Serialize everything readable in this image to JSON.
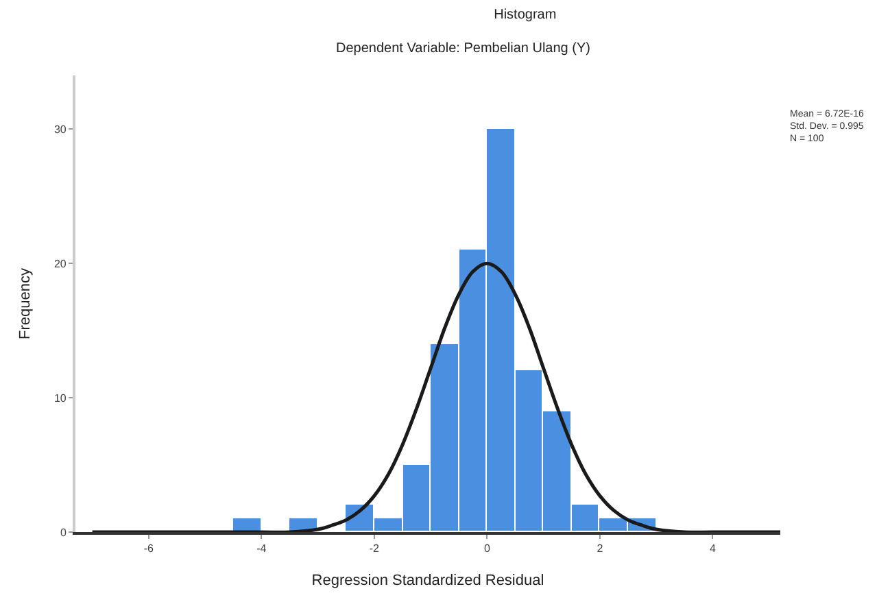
{
  "chart_data": {
    "type": "histogram",
    "title": "Histogram",
    "subtitle": "Dependent Variable: Pembelian Ulang (Y)",
    "xlabel": "Regression Standardized Residual",
    "ylabel": "Frequency",
    "bins": [
      -4.5,
      -4,
      -3.5,
      -3,
      -2.5,
      -2,
      -1.5,
      -1,
      -0.5,
      0,
      0.5,
      1,
      1.5,
      2,
      2.5,
      3
    ],
    "values": [
      1,
      0,
      1,
      0,
      2,
      1,
      5,
      14,
      21,
      30,
      12,
      9,
      2,
      1,
      1
    ],
    "color": "#4a8fe0",
    "series": [
      {
        "type": "line",
        "color": "#1a1a1a",
        "x": [
          -7,
          -6,
          -5,
          -4.5,
          -4,
          -3.5,
          -3,
          -2.75,
          -2.5,
          -2.25,
          -2,
          -1.75,
          -1.5,
          -1.25,
          -1,
          -0.75,
          -0.5,
          -0.25,
          0,
          0.25,
          0.5,
          0.75,
          1,
          1.25,
          1.5,
          1.75,
          2,
          2.25,
          2.5,
          2.75,
          3,
          3.5,
          4,
          4.5,
          5,
          5.2
        ],
        "values": [
          0,
          0,
          0,
          0,
          0,
          0,
          0.2,
          0.5,
          0.9,
          1.6,
          2.7,
          4.3,
          6.5,
          9.2,
          12.2,
          15.2,
          17.7,
          19.4,
          20,
          19.4,
          17.7,
          15.2,
          12.2,
          9.2,
          6.5,
          4.3,
          2.7,
          1.6,
          0.9,
          0.5,
          0.2,
          0,
          0,
          0,
          0,
          0
        ]
      }
    ],
    "xlim": [
      -7.3,
      5.2
    ],
    "xticks": [
      -6,
      -4,
      -2,
      0,
      2,
      4
    ],
    "ylim": [
      0,
      34
    ],
    "yticks": [
      0,
      10,
      20,
      30
    ],
    "annotations": [
      "Mean = 6.72E-16",
      "Std. Dev. = 0.995",
      "N = 100"
    ]
  }
}
